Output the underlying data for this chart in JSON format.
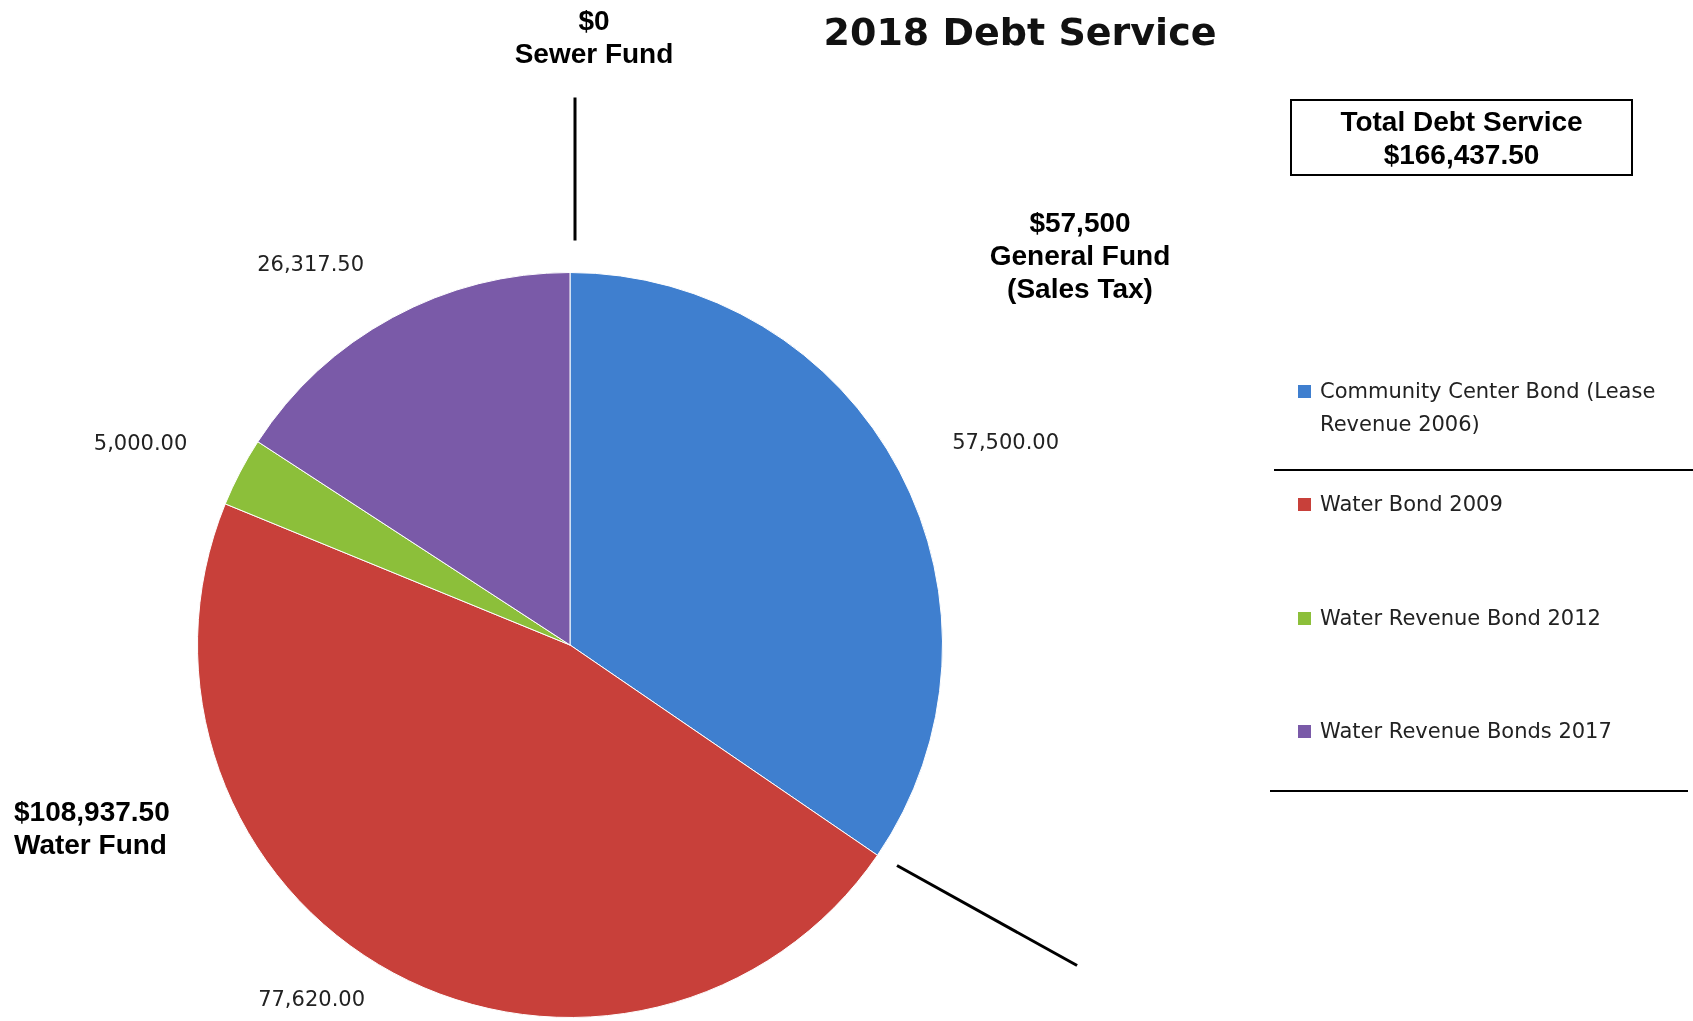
{
  "chart_data": {
    "type": "pie",
    "title": "2018 Debt Service",
    "categories": [
      "Community Center Bond (Lease Revenue 2006)",
      "Water Bond 2009",
      "Water Revenue Bond 2012",
      "Water Revenue Bonds 2017"
    ],
    "values": [
      57500,
      77620,
      5000,
      26317.5
    ],
    "colors": [
      "#3f7fcf",
      "#c8403a",
      "#8cbf3a",
      "#7a5aa8"
    ],
    "value_labels": [
      "57,500.00",
      "77,620.00",
      "5,000.00",
      "26,317.50"
    ],
    "legend": "right",
    "annotations": [
      "$0\nSewer Fund",
      "$57,500\nGeneral Fund\n(Sales Tax)",
      "$108,937.50\nWater Fund",
      "Total Debt Service\n$166,437.50"
    ]
  }
}
